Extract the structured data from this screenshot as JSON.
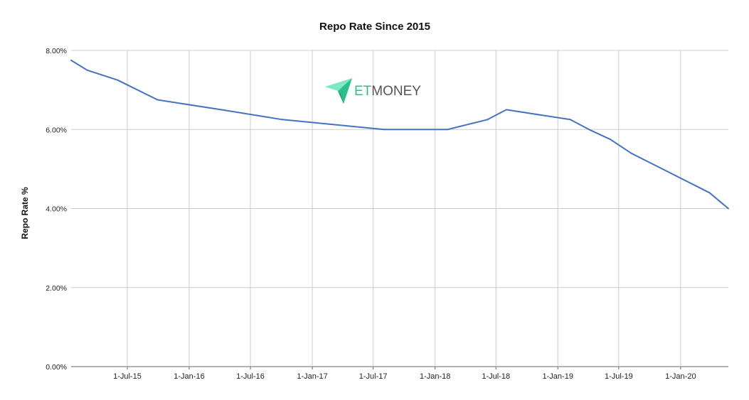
{
  "chart_data": {
    "type": "line",
    "title": "Repo Rate Since 2015",
    "xlabel": "",
    "ylabel": "Repo Rate %",
    "ylim": [
      0,
      8
    ],
    "y_ticks": [
      "0.00%",
      "2.00%",
      "4.00%",
      "6.00%",
      "8.00%"
    ],
    "x_ticks": [
      "1-Jul-15",
      "1-Jan-16",
      "1-Jul-16",
      "1-Jan-17",
      "1-Jul-17",
      "1-Jan-18",
      "1-Jul-18",
      "1-Jan-19",
      "1-Jul-19",
      "1-Jan-20"
    ],
    "xlim": [
      "2015-01-15",
      "2020-05-22"
    ],
    "grid": true,
    "legend": "none",
    "series": [
      {
        "color": "#4472c4",
        "points": [
          {
            "x": "2015-01-15",
            "y": 7.75
          },
          {
            "x": "2015-03-04",
            "y": 7.5
          },
          {
            "x": "2015-06-02",
            "y": 7.25
          },
          {
            "x": "2015-09-29",
            "y": 6.75
          },
          {
            "x": "2016-04-05",
            "y": 6.5
          },
          {
            "x": "2016-10-04",
            "y": 6.25
          },
          {
            "x": "2017-08-02",
            "y": 6.0
          },
          {
            "x": "2018-02-07",
            "y": 6.0
          },
          {
            "x": "2018-06-06",
            "y": 6.25
          },
          {
            "x": "2018-08-01",
            "y": 6.5
          },
          {
            "x": "2019-02-07",
            "y": 6.25
          },
          {
            "x": "2019-04-04",
            "y": 6.0
          },
          {
            "x": "2019-06-06",
            "y": 5.75
          },
          {
            "x": "2019-08-07",
            "y": 5.4
          },
          {
            "x": "2019-10-04",
            "y": 5.15
          },
          {
            "x": "2020-03-27",
            "y": 4.4
          },
          {
            "x": "2020-05-22",
            "y": 4.0
          }
        ]
      }
    ]
  },
  "watermark": {
    "text_et": "ET",
    "text_money": "MONEY",
    "color_et": "#2bbf8c",
    "color_money": "#555555"
  }
}
